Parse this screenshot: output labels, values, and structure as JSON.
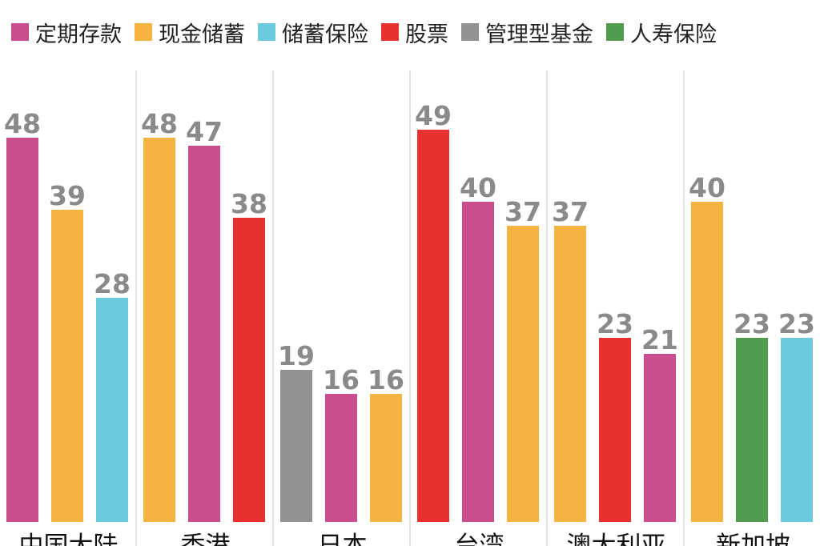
{
  "chart_data": {
    "type": "bar",
    "legend": [
      {
        "name": "定期存款",
        "color": "#cc4d8c"
      },
      {
        "name": "现金储蓄",
        "color": "#f5b340"
      },
      {
        "name": "储蓄保险",
        "color": "#6ccadf"
      },
      {
        "name": "股票",
        "color": "#e8312e"
      },
      {
        "name": "管理型基金",
        "color": "#929292"
      },
      {
        "name": "人寿保险",
        "color": "#519c4f"
      }
    ],
    "ylim": [
      0,
      60
    ],
    "groups": [
      {
        "category": "中国大陆",
        "bars": [
          {
            "series": "定期存款",
            "value": 48
          },
          {
            "series": "现金储蓄",
            "value": 39
          },
          {
            "series": "储蓄保险",
            "value": 28
          }
        ]
      },
      {
        "category": "香港",
        "bars": [
          {
            "series": "现金储蓄",
            "value": 48
          },
          {
            "series": "定期存款",
            "value": 47
          },
          {
            "series": "股票",
            "value": 38
          }
        ]
      },
      {
        "category": "日本",
        "bars": [
          {
            "series": "管理型基金",
            "value": 19
          },
          {
            "series": "定期存款",
            "value": 16
          },
          {
            "series": "现金储蓄",
            "value": 16
          }
        ]
      },
      {
        "category": "台湾",
        "bars": [
          {
            "series": "股票",
            "value": 49
          },
          {
            "series": "定期存款",
            "value": 40
          },
          {
            "series": "现金储蓄",
            "value": 37
          }
        ]
      },
      {
        "category": "澳大利亚",
        "bars": [
          {
            "series": "现金储蓄",
            "value": 37
          },
          {
            "series": "股票",
            "value": 23
          },
          {
            "series": "定期存款",
            "value": 21
          }
        ]
      },
      {
        "category": "新加坡",
        "bars": [
          {
            "series": "现金储蓄",
            "value": 40
          },
          {
            "series": "人寿保险",
            "value": 23
          },
          {
            "series": "储蓄保险",
            "value": 23
          }
        ]
      }
    ]
  }
}
